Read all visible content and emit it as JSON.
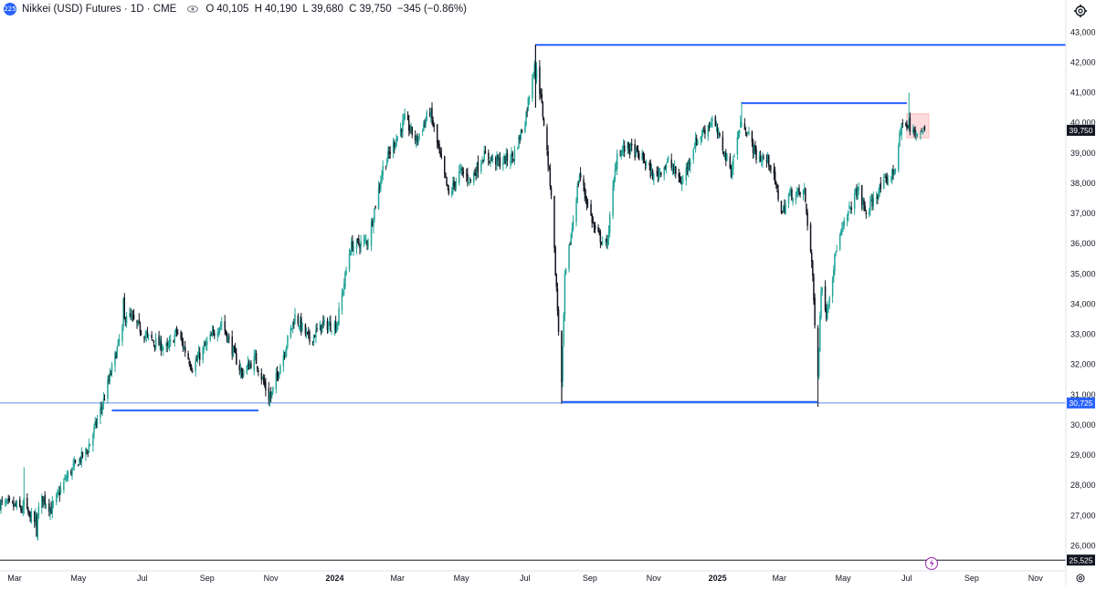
{
  "header": {
    "symbol_badge": "225",
    "title": "Nikkei (USD) Futures · 1D · CME",
    "ohlc": {
      "o_label": "O",
      "o": "40,105",
      "h_label": "H",
      "h": "40,190",
      "l_label": "L",
      "l": "39,680",
      "c_label": "C",
      "c": "39,750",
      "chg": "−345 (−0.86%)"
    }
  },
  "icons": {
    "settings": "gear-icon",
    "eye": "eye-icon",
    "flash": "lightning-icon",
    "price_settings": "gear-icon"
  },
  "colors": {
    "up": "#26a69a",
    "down": "#131722",
    "level": "#2962ff",
    "h_line": "#5b8def",
    "black_line": "#131722",
    "last_price_bg": "#131722",
    "level_label_bg": "#2962ff",
    "marker": "#f7527a"
  },
  "chart_data": {
    "type": "candlestick",
    "title": "Nikkei (USD) Futures · 1D · CME",
    "xlabel": "",
    "ylabel": "",
    "ylim": [
      25200,
      43400
    ],
    "xlim": [
      "2023-02-15",
      "2025-11-30"
    ],
    "y_ticks": [
      26000,
      27000,
      28000,
      29000,
      30000,
      31000,
      32000,
      33000,
      34000,
      35000,
      36000,
      37000,
      38000,
      39000,
      40000,
      41000,
      42000,
      43000
    ],
    "y_tick_labels": [
      "26,000",
      "27,000",
      "28,000",
      "29,000",
      "30,000",
      "31,000",
      "32,000",
      "33,000",
      "34,000",
      "35,000",
      "36,000",
      "37,000",
      "38,000",
      "39,000",
      "40,000",
      "41,000",
      "42,000",
      "43,000"
    ],
    "x_ticks": [
      {
        "date": "2023-03-01",
        "label": "Mar"
      },
      {
        "date": "2023-05-01",
        "label": "May"
      },
      {
        "date": "2023-07-01",
        "label": "Jul"
      },
      {
        "date": "2023-09-01",
        "label": "Sep"
      },
      {
        "date": "2023-11-01",
        "label": "Nov"
      },
      {
        "date": "2024-01-01",
        "label": "2024",
        "bold": true
      },
      {
        "date": "2024-03-01",
        "label": "Mar"
      },
      {
        "date": "2024-05-01",
        "label": "May"
      },
      {
        "date": "2024-07-01",
        "label": "Jul"
      },
      {
        "date": "2024-09-01",
        "label": "Sep"
      },
      {
        "date": "2024-11-01",
        "label": "Nov"
      },
      {
        "date": "2025-01-01",
        "label": "2025",
        "bold": true
      },
      {
        "date": "2025-03-01",
        "label": "Mar"
      },
      {
        "date": "2025-05-01",
        "label": "May"
      },
      {
        "date": "2025-07-01",
        "label": "Jul"
      },
      {
        "date": "2025-09-01",
        "label": "Sep"
      },
      {
        "date": "2025-11-01",
        "label": "Nov"
      }
    ],
    "anchors": [
      [
        "2023-02-15",
        27400
      ],
      [
        "2023-03-03",
        27300
      ],
      [
        "2023-03-14",
        27050
      ],
      [
        "2023-03-20",
        26800
      ],
      [
        "2023-03-28",
        27600
      ],
      [
        "2023-04-05",
        27200
      ],
      [
        "2023-04-20",
        28300
      ],
      [
        "2023-05-10",
        29200
      ],
      [
        "2023-05-25",
        30800
      ],
      [
        "2023-06-16",
        33700
      ],
      [
        "2023-07-06",
        32900
      ],
      [
        "2023-07-25",
        32500
      ],
      [
        "2023-08-03",
        33100
      ],
      [
        "2023-08-18",
        31900
      ],
      [
        "2023-09-01",
        32700
      ],
      [
        "2023-09-15",
        33400
      ],
      [
        "2023-10-04",
        31700
      ],
      [
        "2023-10-17",
        32200
      ],
      [
        "2023-10-31",
        30800
      ],
      [
        "2023-11-10",
        32000
      ],
      [
        "2023-11-24",
        33600
      ],
      [
        "2023-12-08",
        32800
      ],
      [
        "2023-12-20",
        33300
      ],
      [
        "2024-01-03",
        33300
      ],
      [
        "2024-01-16",
        35900
      ],
      [
        "2024-02-02",
        36100
      ],
      [
        "2024-02-16",
        38500
      ],
      [
        "2024-03-08",
        40100
      ],
      [
        "2024-03-19",
        39400
      ],
      [
        "2024-04-01",
        40400
      ],
      [
        "2024-04-19",
        37600
      ],
      [
        "2024-04-30",
        38400
      ],
      [
        "2024-05-10",
        38100
      ],
      [
        "2024-05-22",
        38900
      ],
      [
        "2024-06-07",
        38700
      ],
      [
        "2024-06-20",
        38900
      ],
      [
        "2024-07-01",
        40100
      ],
      [
        "2024-07-11",
        42200
      ],
      [
        "2024-07-19",
        40000
      ],
      [
        "2024-07-26",
        37700
      ],
      [
        "2024-08-05",
        31200
      ],
      [
        "2024-08-08",
        34800
      ],
      [
        "2024-08-22",
        38300
      ],
      [
        "2024-09-06",
        36400
      ],
      [
        "2024-09-17",
        35900
      ],
      [
        "2024-09-27",
        39000
      ],
      [
        "2024-10-08",
        39200
      ],
      [
        "2024-10-22",
        38800
      ],
      [
        "2024-11-01",
        38200
      ],
      [
        "2024-11-15",
        38700
      ],
      [
        "2024-11-28",
        38000
      ],
      [
        "2024-12-10",
        39300
      ],
      [
        "2024-12-27",
        40100
      ],
      [
        "2025-01-14",
        38400
      ],
      [
        "2025-01-24",
        40200
      ],
      [
        "2025-02-07",
        38900
      ],
      [
        "2025-02-20",
        38700
      ],
      [
        "2025-03-04",
        37000
      ],
      [
        "2025-03-10",
        37600
      ],
      [
        "2025-03-25",
        37700
      ],
      [
        "2025-04-01",
        35400
      ],
      [
        "2025-04-07",
        31500
      ],
      [
        "2025-04-10",
        34600
      ],
      [
        "2025-04-15",
        33700
      ],
      [
        "2025-04-25",
        35900
      ],
      [
        "2025-05-09",
        37300
      ],
      [
        "2025-05-15",
        37800
      ],
      [
        "2025-05-23",
        37000
      ],
      [
        "2025-06-05",
        37800
      ],
      [
        "2025-06-19",
        38400
      ],
      [
        "2025-06-27",
        40100
      ],
      [
        "2025-07-03",
        39700
      ],
      [
        "2025-07-11",
        39700
      ],
      [
        "2025-07-18",
        39750
      ]
    ],
    "highlights": [
      [
        "2023-03-10",
        28600,
        27600
      ],
      [
        "2023-03-22",
        26900,
        26300
      ],
      [
        "2023-06-13",
        33200,
        34200
      ],
      [
        "2023-10-31",
        30600,
        31100
      ],
      [
        "2024-07-11",
        42600,
        41500
      ],
      [
        "2024-08-05",
        30700,
        31400
      ],
      [
        "2025-01-24",
        40700,
        40000
      ],
      [
        "2025-04-07",
        30600,
        31600
      ],
      [
        "2025-07-03",
        41000,
        40100
      ]
    ],
    "levels": [
      {
        "type": "hline",
        "price": 30725,
        "label": "30,725"
      },
      {
        "type": "hline",
        "price": 25525,
        "label": "25,525",
        "color": "black"
      },
      {
        "type": "segment",
        "price": 42580,
        "from": "2024-07-11",
        "to": "2025-11-30"
      },
      {
        "type": "vline",
        "date": "2024-07-11",
        "from_price": 42580,
        "to_price": 40500
      },
      {
        "type": "segment",
        "price": 40650,
        "from": "2025-01-24",
        "to": "2025-07-01"
      },
      {
        "type": "segment",
        "price": 30480,
        "from": "2023-06-02",
        "to": "2023-10-20"
      },
      {
        "type": "segment",
        "price": 30760,
        "from": "2024-08-05",
        "to": "2025-04-07"
      },
      {
        "type": "vline",
        "date": "2024-08-05",
        "from_price": 33000,
        "to_price": 30760
      }
    ],
    "last_price": {
      "value": 39750,
      "label": "39,750"
    },
    "highlight_box": {
      "from": "2025-07-01",
      "to": "2025-07-22",
      "low": 39500,
      "high": 40300
    },
    "markers": [
      {
        "price": 40600
      },
      {
        "price": 40350
      }
    ]
  }
}
